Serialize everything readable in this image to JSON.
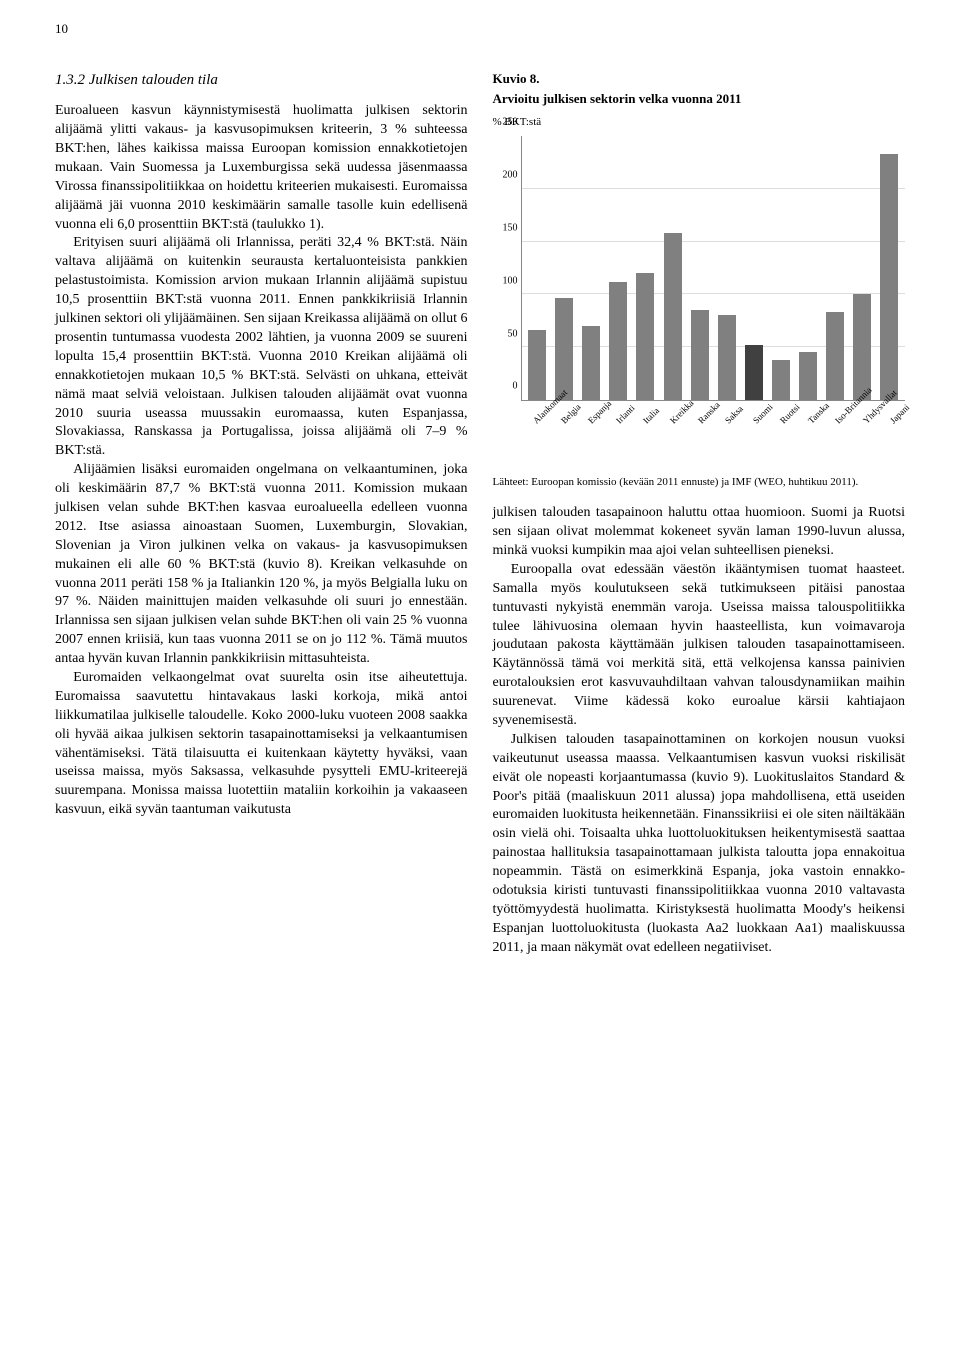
{
  "page_number": "10",
  "section": {
    "number": "1.3.2",
    "title": "Julkisen talouden tila"
  },
  "left_column": {
    "p1": "Euroalueen kasvun käynnistymisestä huolimatta julkisen sektorin alijäämä ylitti vakaus- ja kasvusopimuksen kriteerin, 3 % suhteessa BKT:hen, lähes kaikissa maissa Euroopan komission ennakkotietojen mukaan. Vain Suomessa ja Luxemburgissa sekä uudessa jäsenmaassa Virossa finanssipolitiikkaa on hoidettu kriteerien mukaisesti. Euromaissa alijäämä jäi vuonna 2010 keskimäärin samalle tasolle kuin edellisenä vuonna eli 6,0 prosenttiin BKT:stä (taulukko 1).",
    "p2": "Erityisen suuri alijäämä oli Irlannissa, peräti 32,4 % BKT:stä. Näin valtava alijäämä on kuitenkin seurausta kertaluonteisista pankkien pelastustoimista. Komission arvion mukaan Irlannin alijäämä supistuu 10,5 prosenttiin BKT:stä vuonna 2011. Ennen pankkikriisiä Irlannin julkinen sektori oli ylijäämäinen. Sen sijaan Kreikassa alijäämä on ollut 6 prosentin tuntumassa vuodesta 2002 lähtien, ja vuonna 2009 se suureni lopulta 15,4 prosenttiin BKT:stä. Vuonna 2010 Kreikan alijäämä oli ennakkotietojen mukaan 10,5 % BKT:stä. Selvästi on uhkana, etteivät nämä maat selviä veloistaan. Julkisen talouden alijäämät ovat vuonna 2010 suuria useassa muussakin euromaassa, kuten Espanjassa, Slovakiassa, Ranskassa ja Portugalissa, joissa alijäämä oli 7–9 % BKT:stä.",
    "p3": "Alijäämien lisäksi euromaiden ongelmana on velkaantuminen, joka oli keskimäärin 87,7 % BKT:stä vuonna 2011. Komission mukaan julkisen velan suhde BKT:hen kasvaa euroalueella edelleen vuonna 2012. Itse asiassa ainoastaan Suomen, Luxemburgin, Slovakian, Slovenian ja Viron julkinen velka on vakaus- ja kasvusopimuksen mukainen eli alle 60 % BKT:stä (kuvio 8). Kreikan velkasuhde on vuonna 2011 peräti 158 % ja Italiankin 120 %, ja myös Belgialla luku on 97 %. Näiden mainittujen maiden velkasuhde oli suuri jo ennestään. Irlannissa sen sijaan julkisen velan suhde BKT:hen oli vain 25 % vuonna 2007 ennen kriisiä, kun taas vuonna 2011 se on jo 112 %. Tämä muutos antaa hyvän kuvan Irlannin pankkikriisin mittasuhteista.",
    "p4": "Euromaiden velkaongelmat ovat suurelta osin itse aiheutettuja. Euromaissa saavutettu hintavakaus laski korkoja, mikä antoi liikkumatilaa julkiselle taloudelle. Koko 2000-luku vuoteen 2008 saakka oli hyvää aikaa julkisen sektorin tasapainottamiseksi ja velkaantumisen vähentämiseksi. Tätä tilaisuutta ei kuitenkaan käytetty hyväksi, vaan useissa maissa, myös Saksassa, velkasuhde pysytteli EMU-kriteerejä suurempana. Monissa maissa luotettiin mataliin korkoihin ja vakaaseen kasvuun, eikä syvän taantuman vaikutusta"
  },
  "chart": {
    "title_prefix": "Kuvio 8.",
    "subtitle": "Arvioitu julkisen sektorin velka vuonna 2011",
    "ylabel": "% BKT:stä",
    "ylim_max": 250,
    "ytick_step": 50,
    "yticks": [
      "250",
      "200",
      "150",
      "100",
      "50",
      "0"
    ],
    "categories": [
      "Alankomaat",
      "Belgia",
      "Espanja",
      "Irlanti",
      "Italia",
      "Kreikka",
      "Ranska",
      "Saksa",
      "Suomi",
      "Ruotsi",
      "Tanska",
      "Iso-Britannia",
      "Yhdysvallat",
      "Japani"
    ],
    "values": [
      66,
      97,
      70,
      112,
      120,
      158,
      85,
      80,
      52,
      38,
      45,
      83,
      100,
      233
    ],
    "bar_color_default": "#808080",
    "bar_color_highlight": "#404040",
    "highlight_index": 8,
    "background": "#ffffff",
    "grid_color": "#dddddd",
    "axis_color": "#888888",
    "source": "Lähteet: Euroopan komissio (kevään 2011 ennuste) ja IMF (WEO, huhtikuu 2011)."
  },
  "right_column": {
    "p1": "julkisen talouden tasapainoon haluttu ottaa huomioon. Suomi ja Ruotsi sen sijaan olivat molemmat kokeneet syvän laman 1990-luvun alussa, minkä vuoksi kumpikin maa ajoi velan suhteellisen pieneksi.",
    "p2": "Euroopalla ovat edessään väestön ikääntymisen tuomat haasteet. Samalla myös koulutukseen sekä tutkimukseen pitäisi panostaa tuntuvasti nykyistä enemmän varoja. Useissa maissa talouspolitiikka tulee lähivuosina olemaan hyvin haasteellista, kun voimavaroja joudutaan pakosta käyttämään julkisen talouden tasapainottamiseen. Käytännössä tämä voi merkitä sitä, että velkojensa kanssa painivien eurotalouksien erot kasvuvauhdiltaan vahvan talousdynamiikan maihin suurenevat. Viime kädessä koko euroalue kärsii kahtiajaon syvenemisestä.",
    "p3": "Julkisen talouden tasapainottaminen on korkojen nousun vuoksi vaikeutunut useassa maassa. Velkaantumisen kasvun vuoksi riskilisät eivät ole nopeasti korjaantumassa (kuvio 9). Luokituslaitos Standard & Poor's pitää (maaliskuun 2011 alussa) jopa mahdollisena, että useiden euromaiden luokitusta heikennetään. Finanssikriisi ei ole siten näiltäkään osin vielä ohi. Toisaalta uhka luottoluokituksen heikentymisestä saattaa painostaa hallituksia tasapainottamaan julkista taloutta jopa ennakoitua nopeammin. Tästä on esimerkkinä Espanja, joka vastoin ennakko-odotuksia kiristi tuntuvasti finanssipolitiikkaa vuonna 2010 valtavasta työttömyydestä huolimatta. Kiristyksestä huolimatta Moody's heikensi Espanjan luottoluokitusta (luokasta Aa2 luokkaan Aa1) maaliskuussa 2011, ja maan näkymät ovat edelleen negatiiviset."
  }
}
